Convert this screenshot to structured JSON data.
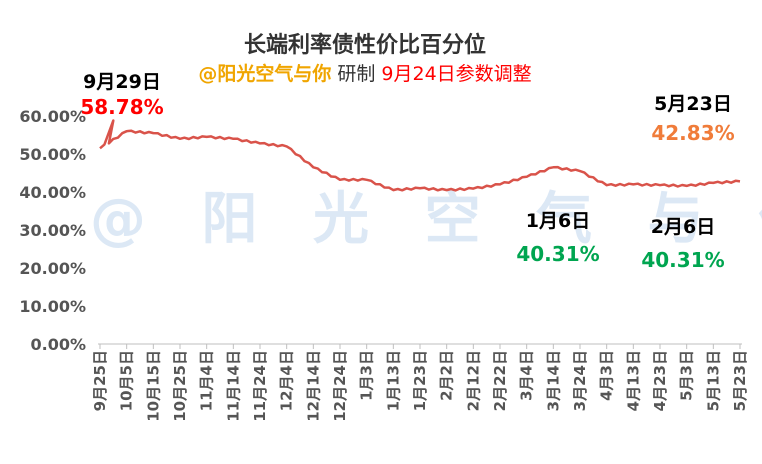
{
  "chart_data": {
    "type": "line",
    "title": "长端利率债性价比百分位",
    "subtitle": {
      "handle": "@阳光空气与你",
      "middle": " 研制 ",
      "note": "9月24日参数调整"
    },
    "watermark": "@ 阳 光 空 气 与 你",
    "ylim": [
      0,
      0.6
    ],
    "yticks": [
      "0.00%",
      "10.00%",
      "20.00%",
      "30.00%",
      "40.00%",
      "50.00%",
      "60.00%"
    ],
    "xlabels": [
      "9月25日",
      "10月5日",
      "10月15日",
      "10月25日",
      "11月4日",
      "11月14日",
      "11月24日",
      "12月4日",
      "12月14日",
      "12月24日",
      "1月3日",
      "1月13日",
      "1月23日",
      "2月2日",
      "2月12日",
      "2月22日",
      "3月4日",
      "3月14日",
      "3月24日",
      "4月3日",
      "4月13日",
      "4月23日",
      "5月3日",
      "5月13日",
      "5月23日"
    ],
    "series": [
      {
        "x": [
          0,
          1,
          2,
          3,
          4,
          5,
          6,
          7,
          8,
          9,
          10,
          11,
          12,
          13,
          14,
          15,
          16,
          17,
          18,
          19,
          20,
          21,
          22,
          23,
          24
        ],
        "values": [
          0.515,
          0.56,
          0.555,
          0.54,
          0.545,
          0.54,
          0.528,
          0.52,
          0.465,
          0.432,
          0.432,
          0.405,
          0.41,
          0.405,
          0.409,
          0.42,
          0.44,
          0.465,
          0.455,
          0.418,
          0.42,
          0.418,
          0.416,
          0.424,
          0.428
        ],
        "color": "#d9534a"
      }
    ],
    "annotations": [
      {
        "date": "9月29日",
        "value": "58.78%",
        "date_color": "#000000",
        "value_color": "#ff0000"
      },
      {
        "date": "1月6日",
        "value": "40.31%",
        "date_color": "#000000",
        "value_color": "#00a550"
      },
      {
        "date": "2月6日",
        "value": "40.31%",
        "date_color": "#000000",
        "value_color": "#00a550"
      },
      {
        "date": "5月23日",
        "value": "42.83%",
        "date_color": "#000000",
        "value_color": "#f07c3a"
      }
    ],
    "colors": {
      "title": "#333333",
      "handle": "#f0a500",
      "middle": "#333333",
      "note": "#ff0000",
      "axis_text": "#555555",
      "watermark": "#dce8f5"
    }
  }
}
